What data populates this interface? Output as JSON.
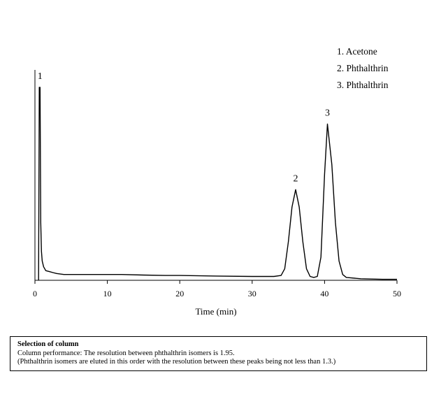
{
  "chart_data": {
    "type": "line",
    "xlabel": "Time (min)",
    "xlim": [
      0,
      50
    ],
    "x_ticks": [
      0,
      10,
      20,
      30,
      40,
      50
    ],
    "ylim": [
      0,
      1
    ],
    "grid": false,
    "legend": [
      "1. Acetone",
      "2. Phthalthrin",
      "3. Phthalthrin"
    ],
    "legend_position": "top-right",
    "peaks": [
      {
        "label": "1",
        "time": 0.7,
        "height": 1.0
      },
      {
        "label": "2",
        "time": 36.0,
        "height": 0.47
      },
      {
        "label": "3",
        "time": 40.4,
        "height": 0.81
      }
    ],
    "series": [
      {
        "x": [
          0.5,
          0.6,
          0.7,
          0.8,
          0.9,
          1.0,
          1.2,
          1.5,
          2.0,
          2.5,
          3.0,
          4.0,
          6.0,
          8.0,
          10.0,
          12.0,
          15.0,
          18.0,
          20.0,
          25.0,
          30.0,
          33.0,
          34.0,
          34.5,
          35.0,
          35.5,
          36.0,
          36.5,
          37.0,
          37.5,
          38.0,
          38.5,
          39.0,
          39.5,
          40.0,
          40.4,
          41.0,
          41.5,
          42.0,
          42.5,
          43.0,
          45.0,
          48.0,
          50.0
        ],
        "y": [
          0.0,
          1.0,
          1.0,
          0.3,
          0.15,
          0.1,
          0.07,
          0.05,
          0.045,
          0.04,
          0.035,
          0.03,
          0.03,
          0.03,
          0.03,
          0.03,
          0.027,
          0.025,
          0.025,
          0.022,
          0.02,
          0.02,
          0.025,
          0.06,
          0.2,
          0.38,
          0.47,
          0.38,
          0.2,
          0.06,
          0.02,
          0.015,
          0.02,
          0.12,
          0.55,
          0.81,
          0.6,
          0.3,
          0.1,
          0.03,
          0.015,
          0.008,
          0.005,
          0.005
        ]
      }
    ]
  },
  "note": {
    "title": "Selection of column",
    "line1": "Column performance: The resolution between phthalthrin isomers is 1.95.",
    "line2": "(Phthalthrin isomers are eluted in this order with the resolution between these peaks being not less than 1.3.)"
  }
}
